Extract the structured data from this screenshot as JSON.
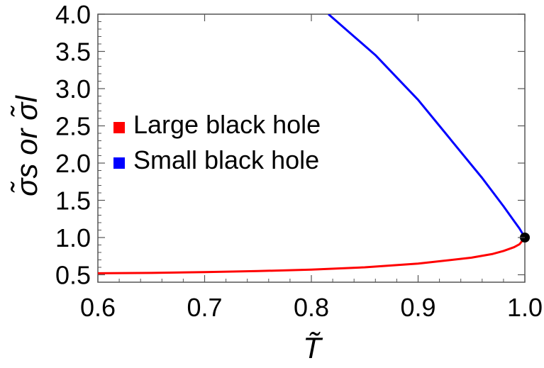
{
  "chart_data": {
    "type": "line",
    "xlabel": "T̃",
    "ylabel": "σ̃s or σ̃l",
    "xlim": [
      0.6,
      1.0
    ],
    "ylim": [
      0.4,
      4.0
    ],
    "xticks": [
      "0.6",
      "0.7",
      "0.8",
      "0.9",
      "1.0"
    ],
    "yticks": [
      "0.5",
      "1.0",
      "1.5",
      "2.0",
      "2.5",
      "3.0",
      "3.5",
      "4.0"
    ],
    "legend_placement": "center-left",
    "series": [
      {
        "name": "Large black hole",
        "color": "#ff0000",
        "x": [
          0.6,
          0.65,
          0.7,
          0.75,
          0.8,
          0.85,
          0.9,
          0.95,
          0.97,
          0.98,
          0.99,
          0.995,
          1.0
        ],
        "y": [
          0.52,
          0.525,
          0.535,
          0.55,
          0.57,
          0.6,
          0.65,
          0.73,
          0.78,
          0.82,
          0.87,
          0.91,
          1.0
        ]
      },
      {
        "name": "Small black hole",
        "color": "#0000ff",
        "x": [
          0.816,
          0.84,
          0.86,
          0.88,
          0.9,
          0.92,
          0.94,
          0.96,
          0.98,
          0.99,
          0.995,
          1.0
        ],
        "y": [
          4.0,
          3.7,
          3.45,
          3.15,
          2.85,
          2.5,
          2.15,
          1.8,
          1.42,
          1.22,
          1.12,
          1.0
        ]
      }
    ],
    "critical_point": {
      "x": 1.0,
      "y": 1.0,
      "color": "#000000"
    }
  }
}
